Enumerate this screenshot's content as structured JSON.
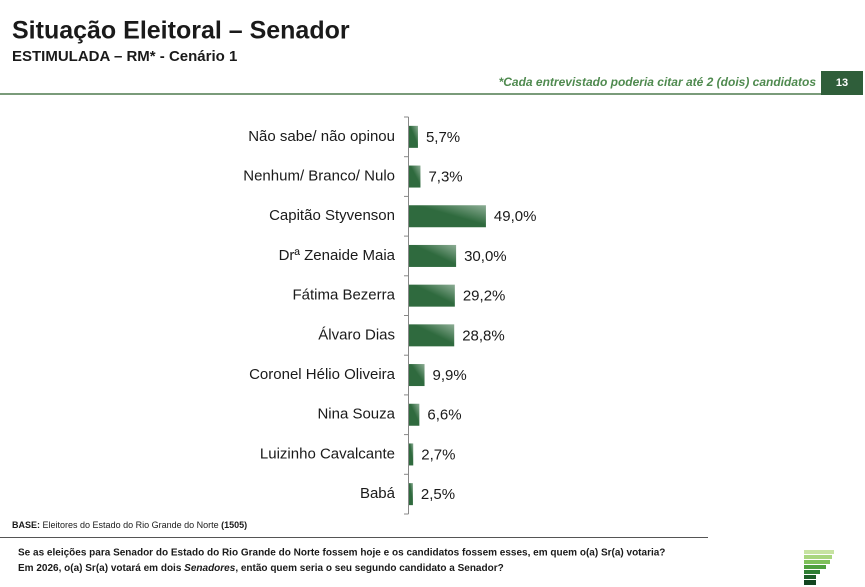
{
  "chart_data": {
    "type": "bar",
    "orientation": "horizontal",
    "title": "Situação Eleitoral – Senador",
    "subtitle": "ESTIMULADA – RM* - Cenário 1",
    "note": "*Cada entrevistado poderia citar até 2 (dois) candidatos",
    "categories": [
      "Não sabe/ não opinou",
      "Nenhum/ Branco/ Nulo",
      "Capitão Styvenson",
      "Drª Zenaide Maia",
      "Fátima Bezerra",
      "Álvaro Dias",
      "Coronel Hélio Oliveira",
      "Nina Souza",
      "Luizinho Cavalcante",
      "Babá"
    ],
    "values": [
      5.7,
      7.3,
      49.0,
      30.0,
      29.2,
      28.8,
      9.9,
      6.6,
      2.7,
      2.5
    ],
    "value_labels": [
      "5,7%",
      "7,3%",
      "49,0%",
      "30,0%",
      "29,2%",
      "28,8%",
      "9,9%",
      "6,6%",
      "2,7%",
      "2,5%"
    ],
    "color": "#2f6a3e"
  },
  "slide": {
    "page_number": "13",
    "base_label": "BASE:",
    "base_text": "Eleitores do Estado do Rio Grande do Norte",
    "base_n": "(1505)",
    "question_line_1": "Se as eleições para Senador do Estado do Rio Grande do Norte fossem hoje e os candidatos fossem esses, em quem o(a) Sr(a) votaria?",
    "question_line_2_start": "Em 2026, o(a) Sr(a) votará em dois ",
    "question_line_2_italic": "Senadores",
    "question_line_2_end": ", então quem seria o seu segundo candidato a Senador?"
  }
}
